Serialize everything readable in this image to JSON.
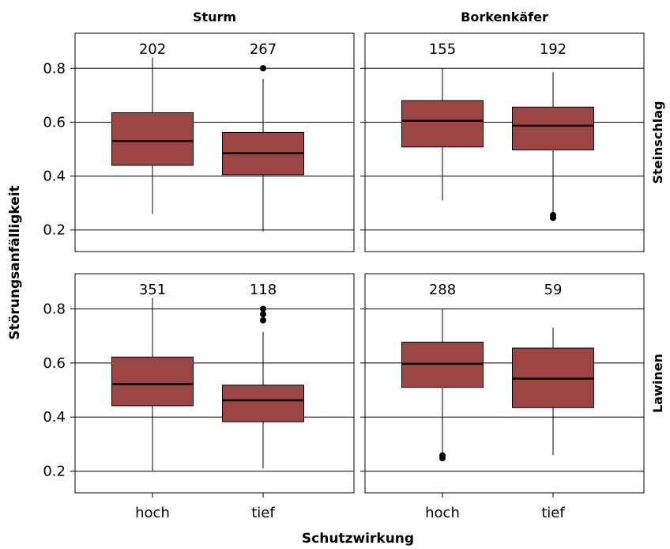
{
  "chart_data": {
    "type": "boxplot",
    "ylabel": "Störungsanfälligkeit",
    "xlabel": "Schutzwirkung",
    "categories": [
      "hoch",
      "tief"
    ],
    "column_facets": [
      "Sturm",
      "Borkenkäfer"
    ],
    "row_facets": [
      "Steinschlag",
      "Lawinen"
    ],
    "ylim": [
      0.12,
      0.93
    ],
    "yticks": [
      0.2,
      0.4,
      0.6,
      0.8
    ],
    "ytick_labels": [
      "0.2",
      "0.4",
      "0.6",
      "0.8"
    ],
    "grid": true,
    "box_color": "#9b4545",
    "panels": [
      {
        "column": "Sturm",
        "row": "Steinschlag",
        "boxes": [
          {
            "category": "hoch",
            "n": "202",
            "whisker_low": 0.26,
            "q1": 0.44,
            "median": 0.53,
            "q3": 0.635,
            "whisker_high": 0.84,
            "outliers": []
          },
          {
            "category": "tief",
            "n": "267",
            "whisker_low": 0.195,
            "q1": 0.405,
            "median": 0.485,
            "q3": 0.562,
            "whisker_high": 0.76,
            "outliers": [
              0.8
            ]
          }
        ]
      },
      {
        "column": "Borkenkäfer",
        "row": "Steinschlag",
        "boxes": [
          {
            "category": "hoch",
            "n": "155",
            "whisker_low": 0.31,
            "q1": 0.508,
            "median": 0.605,
            "q3": 0.68,
            "whisker_high": 0.8,
            "outliers": []
          },
          {
            "category": "tief",
            "n": "192",
            "whisker_low": 0.265,
            "q1": 0.497,
            "median": 0.587,
            "q3": 0.656,
            "whisker_high": 0.785,
            "outliers": [
              0.255,
              0.245
            ]
          }
        ]
      },
      {
        "column": "Sturm",
        "row": "Lawinen",
        "boxes": [
          {
            "category": "hoch",
            "n": "351",
            "whisker_low": 0.2,
            "q1": 0.442,
            "median": 0.522,
            "q3": 0.622,
            "whisker_high": 0.84,
            "outliers": []
          },
          {
            "category": "tief",
            "n": "118",
            "whisker_low": 0.21,
            "q1": 0.383,
            "median": 0.462,
            "q3": 0.518,
            "whisker_high": 0.715,
            "outliers": [
              0.8,
              0.78,
              0.758
            ]
          }
        ]
      },
      {
        "column": "Borkenkäfer",
        "row": "Lawinen",
        "boxes": [
          {
            "category": "hoch",
            "n": "288",
            "whisker_low": 0.265,
            "q1": 0.51,
            "median": 0.597,
            "q3": 0.677,
            "whisker_high": 0.8,
            "outliers": [
              0.258,
              0.248
            ]
          },
          {
            "category": "tief",
            "n": "59",
            "whisker_low": 0.26,
            "q1": 0.435,
            "median": 0.542,
            "q3": 0.655,
            "whisker_high": 0.73,
            "outliers": []
          }
        ]
      }
    ]
  }
}
